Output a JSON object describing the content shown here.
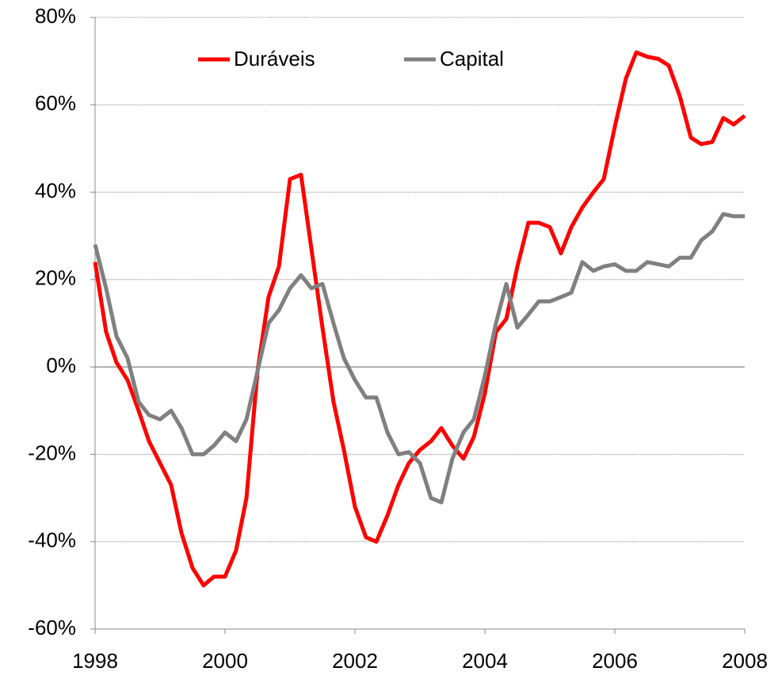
{
  "chart_data": {
    "type": "line",
    "x": [
      1998,
      1998.17,
      1998.33,
      1998.5,
      1998.67,
      1998.83,
      1999,
      1999.17,
      1999.33,
      1999.5,
      1999.67,
      1999.83,
      2000,
      2000.17,
      2000.33,
      2000.5,
      2000.67,
      2000.83,
      2001,
      2001.17,
      2001.33,
      2001.5,
      2001.67,
      2001.83,
      2002,
      2002.17,
      2002.33,
      2002.5,
      2002.67,
      2002.83,
      2003,
      2003.17,
      2003.33,
      2003.5,
      2003.67,
      2003.83,
      2004,
      2004.17,
      2004.33,
      2004.5,
      2004.67,
      2004.83,
      2005,
      2005.17,
      2005.33,
      2005.5,
      2005.67,
      2005.83,
      2006,
      2006.17,
      2006.33,
      2006.5,
      2006.67,
      2006.83,
      2007,
      2007.17,
      2007.33,
      2007.5,
      2007.67,
      2007.83,
      2008
    ],
    "series": [
      {
        "name": "Duráveis",
        "color": "#ff0000",
        "values": [
          24,
          8,
          1,
          -3,
          -10,
          -17,
          -22,
          -27,
          -38,
          -46,
          -50,
          -48,
          -48,
          -42,
          -30,
          -1,
          16,
          23,
          43,
          44,
          27,
          9,
          -8,
          -19,
          -32,
          -39,
          -40,
          -34,
          -27,
          -22,
          -19,
          -17,
          -14,
          -18,
          -21,
          -16,
          -6,
          8,
          11,
          23,
          33,
          33,
          32,
          26,
          32,
          36.5,
          40,
          43,
          55,
          66,
          72,
          71,
          70.5,
          69,
          62,
          52.5,
          51,
          51.5,
          57,
          55.5,
          57.5
        ]
      },
      {
        "name": "Capital",
        "color": "#808080",
        "values": [
          28,
          18,
          7,
          2,
          -8,
          -11,
          -12,
          -10,
          -14,
          -20,
          -20,
          -18,
          -15,
          -17,
          -12,
          -1,
          10,
          13,
          18,
          21,
          18,
          19,
          10,
          2,
          -3,
          -7,
          -7,
          -15,
          -20,
          -19.5,
          -22,
          -30,
          -31,
          -21,
          -15,
          -12,
          -2,
          10,
          19,
          9,
          12,
          15,
          15,
          16,
          17,
          24,
          22,
          23,
          23.5,
          22,
          22,
          24,
          23.5,
          23,
          25,
          25,
          29,
          31,
          35,
          34.5,
          34.5
        ]
      }
    ],
    "xlim": [
      1998,
      2008
    ],
    "xticks": [
      1998,
      2000,
      2002,
      2004,
      2006,
      2008
    ],
    "ylim": [
      -60,
      80
    ],
    "yticks": [
      {
        "value": -60,
        "label": "-60%"
      },
      {
        "value": -40,
        "label": "-40%"
      },
      {
        "value": -20,
        "label": "-20%"
      },
      {
        "value": 0,
        "label": "0%"
      },
      {
        "value": 20,
        "label": "20%"
      },
      {
        "value": 40,
        "label": "40%"
      },
      {
        "value": 60,
        "label": "60%"
      },
      {
        "value": 80,
        "label": "80%"
      }
    ],
    "grid": true,
    "legend": "top"
  }
}
